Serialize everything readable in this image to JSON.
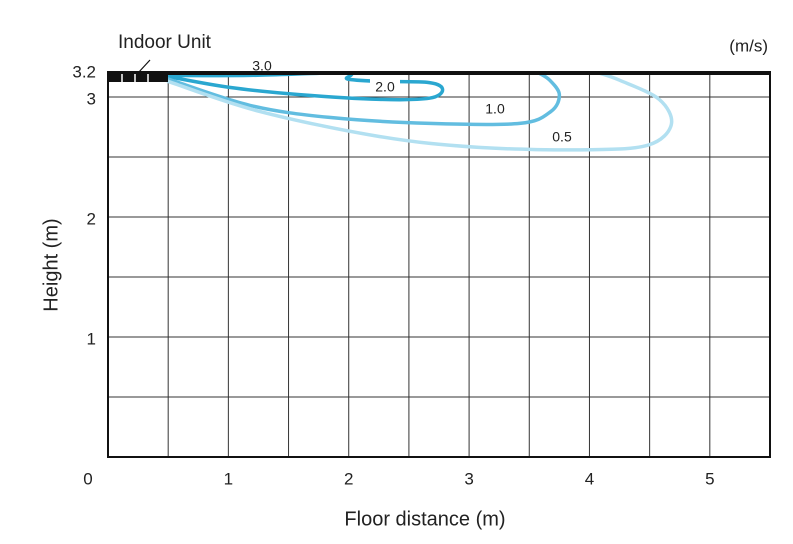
{
  "chart_data": {
    "type": "line",
    "annotation": "Indoor Unit",
    "unit_label": "(m/s)",
    "xlabel": "Floor distance (m)",
    "ylabel": "Height (m)",
    "xlim": [
      0,
      5.5
    ],
    "ylim": [
      0,
      3.2
    ],
    "xticks": [
      0,
      1,
      2,
      3,
      4,
      5
    ],
    "yticks": [
      1,
      2,
      3,
      3.2
    ],
    "x_gridlines": [
      0.5,
      1,
      1.5,
      2,
      2.5,
      3,
      3.5,
      4,
      4.5,
      5
    ],
    "y_gridlines": [
      0.5,
      1,
      1.5,
      2,
      2.5,
      3
    ],
    "grid": true,
    "series": [
      {
        "name": "3.0",
        "color": "#1f8fc0",
        "x": [
          0.5,
          0.76,
          1.09
        ],
        "y": [
          3.19,
          3.2,
          3.2
        ]
      },
      {
        "name": "2.0",
        "color": "#2aa7d0",
        "x": [
          0.5,
          1.18,
          1.97,
          1.99,
          2.26,
          2.67,
          2.78,
          2.67,
          2.26,
          1.59,
          1.01,
          0.5
        ],
        "y": [
          3.18,
          3.18,
          3.2,
          3.15,
          3.13,
          3.12,
          3.06,
          2.99,
          2.98,
          3.02,
          3.08,
          3.17
        ]
      },
      {
        "name": "1.0",
        "color": "#62bde0",
        "x": [
          0.5,
          1.18,
          1.84,
          2.67,
          3.42,
          3.68,
          3.75,
          3.67,
          3.58
        ],
        "y": [
          3.15,
          2.93,
          2.83,
          2.78,
          2.78,
          2.88,
          3.02,
          3.14,
          3.2
        ]
      },
      {
        "name": "0.5",
        "color": "#b2e0f1",
        "x": [
          0.5,
          1.26,
          2.26,
          3.08,
          4.0,
          4.49,
          4.68,
          4.58,
          4.25,
          4.08
        ],
        "y": [
          3.13,
          2.88,
          2.67,
          2.58,
          2.56,
          2.6,
          2.77,
          2.98,
          3.14,
          3.2
        ]
      }
    ]
  }
}
